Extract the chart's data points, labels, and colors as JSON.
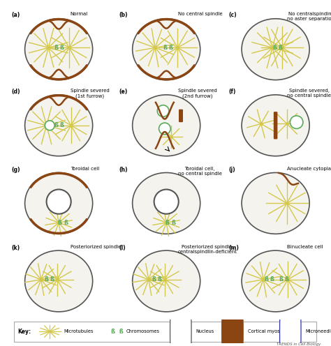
{
  "background": "#ffffff",
  "cell_fill": "#f5f3ee",
  "cell_edge": "#555555",
  "mt_color": "#d4c84a",
  "chrom_color": "#5aaa5a",
  "cortical_color": "#8B4513",
  "nucleus_edge": "#5aaa5a",
  "needle_edge": "#3333aa",
  "panel_labels": [
    "(a)",
    "(b)",
    "(c)",
    "(d)",
    "(e)",
    "(f)",
    "(g)",
    "(h)",
    "(j)",
    "(k)",
    "(l)",
    "(m)"
  ],
  "panel_titles": [
    "Normal",
    "No central spindle",
    "No centralspindin,\nno aster separation",
    "Spindle severed\n(1st furrow)",
    "Spindle severed\n(2nd furrow)",
    "Spindle severed,\nno central spindle",
    "Toroidal cell",
    "Toroidal cell,\nno central spindle",
    "Anucleate cytoplast",
    "Posteriorized spindle",
    "Posteriorized spindle,\ncentralspindlin-deficient",
    "Binucleate cell"
  ],
  "trends_text": "TRENDS in Cell Biology"
}
